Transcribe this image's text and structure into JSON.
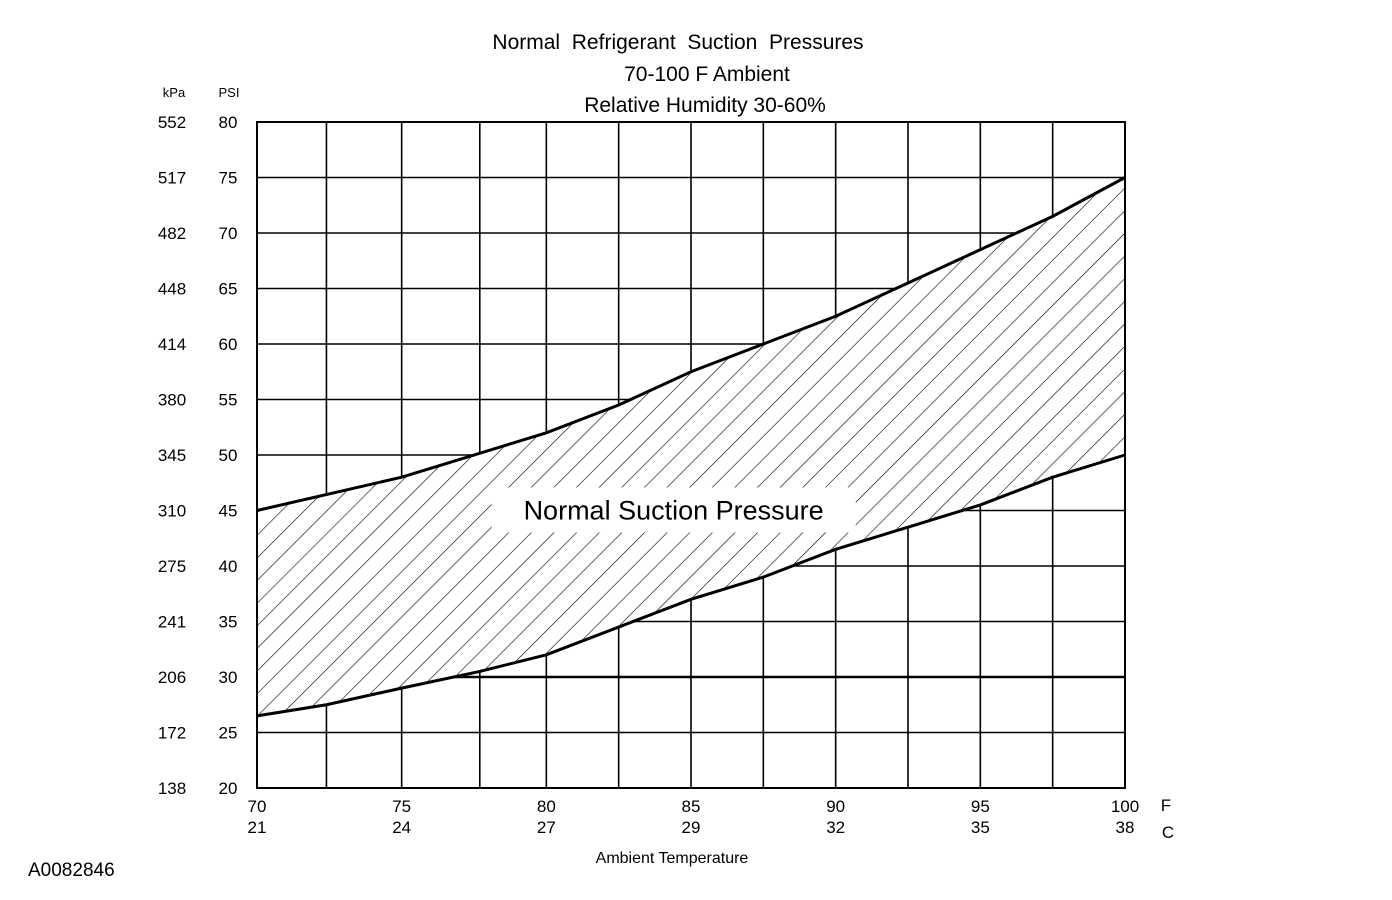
{
  "chart_data": {
    "type": "area",
    "title": "Normal  Refrigerant  Suction  Pressures",
    "subtitle_lines": [
      "70-100 F Ambient",
      "Relative Humidity 30-60%"
    ],
    "xlabel": "Ambient Temperature",
    "x_unit_primary": "F",
    "x_unit_secondary": "C",
    "y_unit_left": "kPa",
    "y_unit_right": "PSI",
    "xlim": [
      70,
      100
    ],
    "ylim": [
      20,
      80
    ],
    "x_ticks_f": [
      "70",
      "75",
      "80",
      "85",
      "90",
      "95",
      "100"
    ],
    "x_ticks_c": [
      "21",
      "24",
      "27",
      "29",
      "32",
      "35",
      "38"
    ],
    "y_ticks_psi": [
      "80",
      "75",
      "70",
      "65",
      "60",
      "55",
      "50",
      "45",
      "40",
      "35",
      "30",
      "25",
      "20"
    ],
    "y_ticks_kpa": [
      "552",
      "517",
      "482",
      "448",
      "414",
      "380",
      "345",
      "310",
      "275",
      "241",
      "206",
      "172",
      "138"
    ],
    "grid_x_f": [
      70,
      72.4,
      75,
      77.7,
      80,
      82.5,
      85,
      87.5,
      90,
      92.5,
      95,
      97.5,
      100
    ],
    "grid_y_psi": [
      20,
      25,
      30,
      35,
      40,
      45,
      50,
      55,
      60,
      65,
      70,
      75,
      80
    ],
    "grid": true,
    "series": [
      {
        "name": "upper",
        "x": [
          70,
          75,
          80,
          82.5,
          85,
          87.5,
          90,
          92.5,
          95,
          97.5,
          100
        ],
        "y": [
          45,
          48,
          52,
          54.5,
          57.5,
          60,
          62.5,
          65.5,
          68.5,
          71.5,
          75
        ]
      },
      {
        "name": "lower",
        "x": [
          70,
          72.4,
          75,
          77.7,
          80,
          82.5,
          85,
          87.5,
          90,
          92.5,
          95,
          97.5,
          100
        ],
        "y": [
          26.5,
          27.5,
          29,
          30.5,
          32,
          34.5,
          37,
          39,
          41.5,
          43.5,
          45.5,
          48,
          50
        ]
      }
    ],
    "region_label": "Normal Suction Pressure",
    "figure_id": "A0082846"
  }
}
